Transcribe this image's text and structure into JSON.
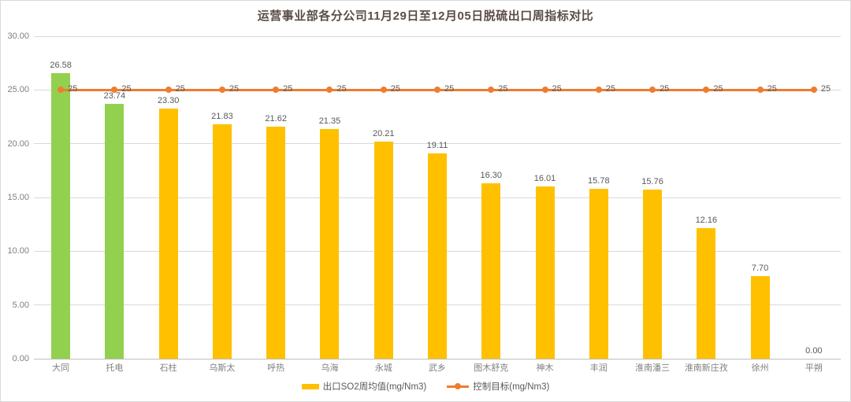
{
  "chart_data": {
    "type": "bar",
    "title": "运营事业部各分公司11月29日至12月05日脱硫出口周指标对比",
    "categories": [
      "大同",
      "托电",
      "石柱",
      "乌斯太",
      "呼热",
      "乌海",
      "永城",
      "武乡",
      "图木舒克",
      "神木",
      "丰润",
      "淮南潘三",
      "淮南新庄孜",
      "徐州",
      "平朔"
    ],
    "series": [
      {
        "name": "出口SO2周均值(mg/Nm3)",
        "type": "bar",
        "values": [
          26.58,
          23.74,
          23.3,
          21.83,
          21.62,
          21.35,
          20.21,
          19.11,
          16.3,
          16.01,
          15.78,
          15.76,
          12.16,
          7.7,
          0.0
        ],
        "point_colors": [
          "#92D050",
          "#92D050",
          "#FFC000",
          "#FFC000",
          "#FFC000",
          "#FFC000",
          "#FFC000",
          "#FFC000",
          "#FFC000",
          "#FFC000",
          "#FFC000",
          "#FFC000",
          "#FFC000",
          "#FFC000",
          "#FFC000"
        ],
        "default_color": "#FFC000"
      },
      {
        "name": "控制目标(mg/Nm3)",
        "type": "line",
        "values": [
          25,
          25,
          25,
          25,
          25,
          25,
          25,
          25,
          25,
          25,
          25,
          25,
          25,
          25,
          25
        ],
        "point_label": "25",
        "color": "#ED7D31"
      }
    ],
    "ylim": [
      0,
      30
    ],
    "yticks": [
      0,
      5,
      10,
      15,
      20,
      25,
      30
    ],
    "ytick_format_decimals": 2,
    "grid": true,
    "legend_position": "bottom",
    "colors": {
      "grid": "#D9D9D9",
      "axis_line": "#BFBFBF",
      "data_label": "#595959",
      "axis_text": "#7F7F7F",
      "title_text": "#5B4D45"
    }
  }
}
